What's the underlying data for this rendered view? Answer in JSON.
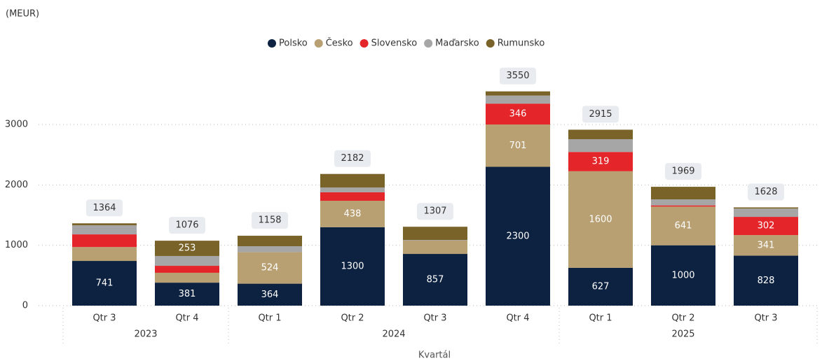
{
  "chart_data": {
    "type": "stacked_bar",
    "title": "(MEUR)",
    "x_label": "Kvartál",
    "categories": [
      "Qtr 3",
      "Qtr 4",
      "Qtr 1",
      "Qtr 2",
      "Qtr 3",
      "Qtr 4",
      "Qtr 1",
      "Qtr 2",
      "Qtr 3"
    ],
    "years": [
      "2023",
      "2023",
      "2024",
      "2024",
      "2024",
      "2024",
      "2025",
      "2025",
      "2025"
    ],
    "series": [
      {
        "name": "Polsko",
        "color": "#0d2240",
        "values": [
          741,
          381,
          364,
          1300,
          857,
          2300,
          627,
          1000,
          828
        ]
      },
      {
        "name": "Česko",
        "color": "#b9a073",
        "values": [
          230,
          164,
          524,
          438,
          221,
          701,
          1600,
          641,
          341
        ]
      },
      {
        "name": "Slovensko",
        "color": "#e4262a",
        "values": [
          210,
          115,
          0,
          140,
          0,
          346,
          319,
          20,
          302
        ]
      },
      {
        "name": "Maďarsko",
        "color": "#a6a6a6",
        "values": [
          150,
          163,
          97,
          80,
          10,
          133,
          212,
          100,
          137
        ]
      },
      {
        "name": "Rumunsko",
        "color": "#7a6329",
        "values": [
          33,
          253,
          173,
          224,
          219,
          70,
          157,
          208,
          20
        ]
      }
    ],
    "totals": [
      1364,
      1076,
      1158,
      2182,
      1307,
      3550,
      2915,
      1969,
      1628
    ],
    "ylim": [
      0,
      3600
    ],
    "yticks": [
      0,
      1000,
      2000,
      3000
    ],
    "grid": true,
    "legend": "top"
  }
}
